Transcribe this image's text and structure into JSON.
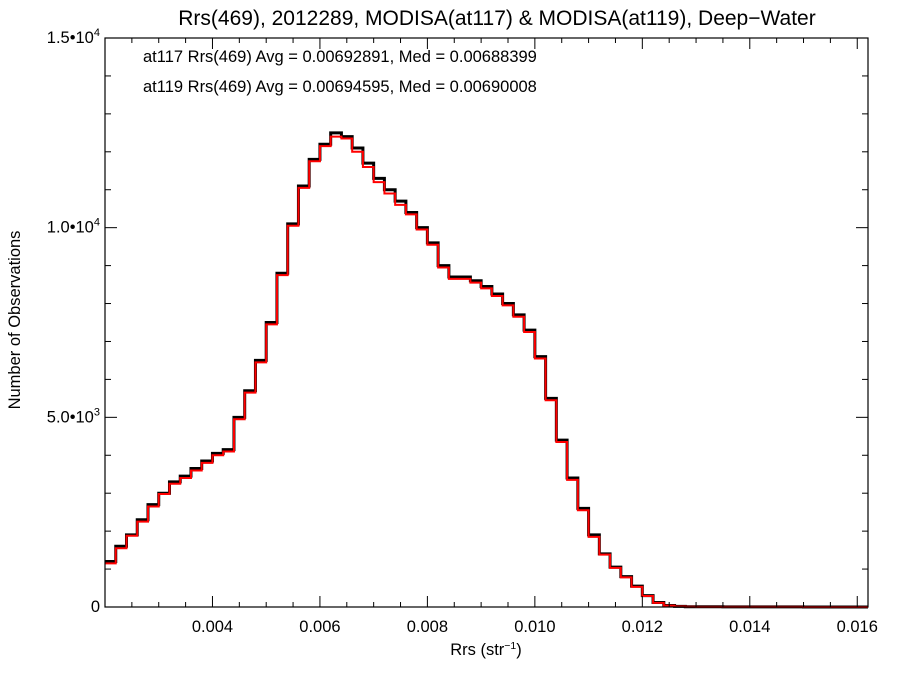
{
  "chart_data": {
    "type": "line",
    "title": "Rrs(469), 2012289, MODISA(at117) & MODISA(at119), Deep−Water",
    "xlabel": "Rrs (str",
    "xlabel_sup": "−1",
    "xlabel_close": ")",
    "ylabel": "Number of Observations",
    "xlim": [
      0.002,
      0.0162
    ],
    "ylim": [
      0,
      15000
    ],
    "x_ticks": [
      0.004,
      0.006,
      0.008,
      0.01,
      0.012,
      0.014,
      0.016
    ],
    "x_tick_labels": [
      "0.004",
      "0.006",
      "0.008",
      "0.010",
      "0.012",
      "0.014",
      "0.016"
    ],
    "y_ticks": [
      0,
      5000,
      10000,
      15000
    ],
    "y_tick_labels": [
      {
        "mantissa": "0",
        "exp": ""
      },
      {
        "mantissa": "5.0•10",
        "exp": "3"
      },
      {
        "mantissa": "1.0•10",
        "exp": "4"
      },
      {
        "mantissa": "1.5•10",
        "exp": "4"
      }
    ],
    "grid": false,
    "annotations": [
      {
        "text": "at117 Rrs(469) Avg = 0.00692891, Med = 0.00688399",
        "color": "#000000"
      },
      {
        "text": "at119 Rrs(469) Avg = 0.00694595, Med = 0.00690008",
        "color": "#ff0000"
      }
    ],
    "series": [
      {
        "name": "at117",
        "color": "#000000",
        "x": [
          0.002,
          0.0022,
          0.0024,
          0.0026,
          0.0028,
          0.003,
          0.0032,
          0.0034,
          0.0036,
          0.0038,
          0.004,
          0.0042,
          0.0044,
          0.0046,
          0.0048,
          0.005,
          0.0052,
          0.0054,
          0.0056,
          0.0058,
          0.006,
          0.0062,
          0.0064,
          0.0066,
          0.0068,
          0.007,
          0.0072,
          0.0074,
          0.0076,
          0.0078,
          0.008,
          0.0082,
          0.0084,
          0.0086,
          0.0088,
          0.009,
          0.0092,
          0.0094,
          0.0096,
          0.0098,
          0.01,
          0.0102,
          0.0104,
          0.0106,
          0.0108,
          0.011,
          0.0112,
          0.0114,
          0.0116,
          0.0118,
          0.012,
          0.0122,
          0.0124,
          0.0126,
          0.0128,
          0.013,
          0.0135,
          0.014,
          0.015,
          0.016,
          0.0162
        ],
        "y": [
          1200,
          1600,
          1900,
          2300,
          2700,
          3000,
          3300,
          3450,
          3650,
          3850,
          4050,
          4150,
          5000,
          5700,
          6500,
          7500,
          8800,
          10100,
          11100,
          11800,
          12200,
          12500,
          12400,
          12100,
          11700,
          11300,
          11000,
          10700,
          10400,
          10000,
          9600,
          9000,
          8700,
          8700,
          8600,
          8450,
          8250,
          8000,
          7700,
          7300,
          6600,
          5500,
          4400,
          3400,
          2600,
          1900,
          1400,
          1050,
          800,
          550,
          300,
          120,
          40,
          15,
          8,
          5,
          3,
          2,
          1,
          1,
          1
        ]
      },
      {
        "name": "at119",
        "color": "#ff0000",
        "x": [
          0.002,
          0.0022,
          0.0024,
          0.0026,
          0.0028,
          0.003,
          0.0032,
          0.0034,
          0.0036,
          0.0038,
          0.004,
          0.0042,
          0.0044,
          0.0046,
          0.0048,
          0.005,
          0.0052,
          0.0054,
          0.0056,
          0.0058,
          0.006,
          0.0062,
          0.0064,
          0.0066,
          0.0068,
          0.007,
          0.0072,
          0.0074,
          0.0076,
          0.0078,
          0.008,
          0.0082,
          0.0084,
          0.0086,
          0.0088,
          0.009,
          0.0092,
          0.0094,
          0.0096,
          0.0098,
          0.01,
          0.0102,
          0.0104,
          0.0106,
          0.0108,
          0.011,
          0.0112,
          0.0114,
          0.0116,
          0.0118,
          0.012,
          0.0122,
          0.0124,
          0.0126,
          0.0128,
          0.013,
          0.0135,
          0.014,
          0.015,
          0.016,
          0.0162
        ],
        "y": [
          1150,
          1550,
          1880,
          2250,
          2650,
          2980,
          3250,
          3400,
          3600,
          3800,
          4000,
          4100,
          4950,
          5650,
          6450,
          7450,
          8750,
          10050,
          11050,
          11750,
          12150,
          12400,
          12350,
          12000,
          11600,
          11200,
          10900,
          10600,
          10350,
          9950,
          9550,
          8950,
          8650,
          8650,
          8550,
          8400,
          8200,
          7950,
          7650,
          7250,
          6550,
          5450,
          4350,
          3350,
          2550,
          1850,
          1380,
          1030,
          780,
          530,
          290,
          110,
          35,
          12,
          6,
          4,
          3,
          2,
          1,
          1,
          1
        ]
      }
    ]
  }
}
